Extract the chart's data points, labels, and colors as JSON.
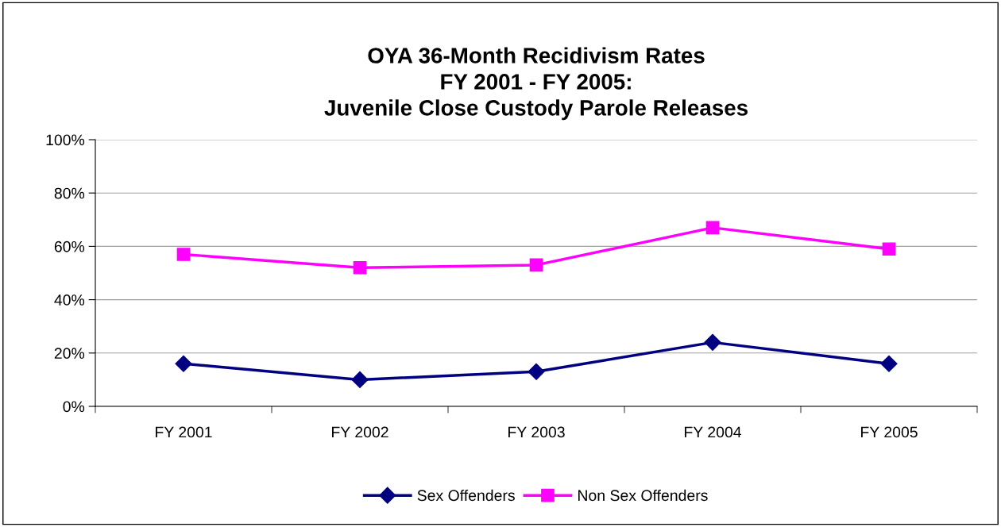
{
  "chart_data": {
    "type": "line",
    "title": "OYA 36-Month Recidivism Rates\nFY 2001 - FY 2005:\nJuvenile Close Custody Parole Releases",
    "categories": [
      "FY 2001",
      "FY 2002",
      "FY 2003",
      "FY 2004",
      "FY 2005"
    ],
    "series": [
      {
        "name": "Sex Offenders",
        "color": "#000080",
        "marker": "diamond",
        "values": [
          16,
          10,
          13,
          24,
          16
        ]
      },
      {
        "name": "Non Sex Offenders",
        "color": "#ff00ff",
        "marker": "square",
        "values": [
          57,
          52,
          53,
          67,
          59
        ]
      }
    ],
    "ylim": [
      0,
      100
    ],
    "yticks": [
      {
        "value": 0,
        "label": "0%"
      },
      {
        "value": 20,
        "label": "20%"
      },
      {
        "value": 40,
        "label": "40%"
      },
      {
        "value": 60,
        "label": "60%"
      },
      {
        "value": 80,
        "label": "80%"
      },
      {
        "value": 100,
        "label": "100%"
      }
    ],
    "grid": "y",
    "legend": "bottom",
    "line_style": "solid"
  }
}
